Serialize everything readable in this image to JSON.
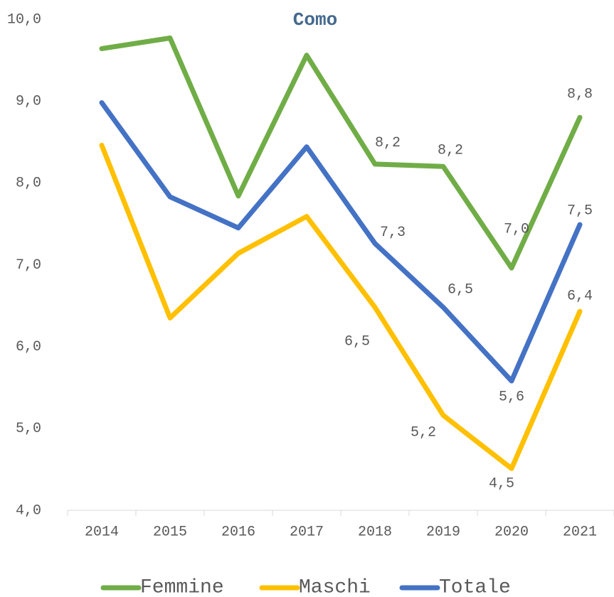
{
  "chart_data": {
    "type": "line",
    "title": "Como",
    "categories": [
      "2014",
      "2015",
      "2016",
      "2017",
      "2018",
      "2019",
      "2020",
      "2021"
    ],
    "series": [
      {
        "name": "Femmine",
        "color": "#70ad47",
        "values": [
          9.64,
          9.77,
          7.84,
          9.56,
          8.23,
          8.2,
          6.96,
          8.8
        ],
        "value_labels": [
          null,
          null,
          null,
          null,
          "8,2",
          "8,2",
          "7,0",
          "8,8"
        ]
      },
      {
        "name": "Maschi",
        "color": "#ffc000",
        "values": [
          8.46,
          6.35,
          7.14,
          7.59,
          6.48,
          5.16,
          4.51,
          6.43
        ],
        "value_labels": [
          null,
          null,
          null,
          null,
          "6,5",
          "5,2",
          "4,5",
          "6,4"
        ]
      },
      {
        "name": "Totale",
        "color": "#4472c4",
        "values": [
          8.98,
          7.83,
          7.45,
          8.44,
          7.26,
          6.48,
          5.58,
          7.49
        ],
        "value_labels": [
          null,
          null,
          null,
          null,
          "7,3",
          "6,5",
          "5,6",
          "7,5"
        ]
      }
    ],
    "ylim": [
      4,
      10
    ],
    "yticks": [
      {
        "value": 4,
        "label": "4,0"
      },
      {
        "value": 5,
        "label": "5,0"
      },
      {
        "value": 6,
        "label": "6,0"
      },
      {
        "value": 7,
        "label": "7,0"
      },
      {
        "value": 8,
        "label": "8,0"
      },
      {
        "value": 9,
        "label": "9,0"
      },
      {
        "value": 10,
        "label": "10,0"
      }
    ],
    "legend": "bottom"
  }
}
